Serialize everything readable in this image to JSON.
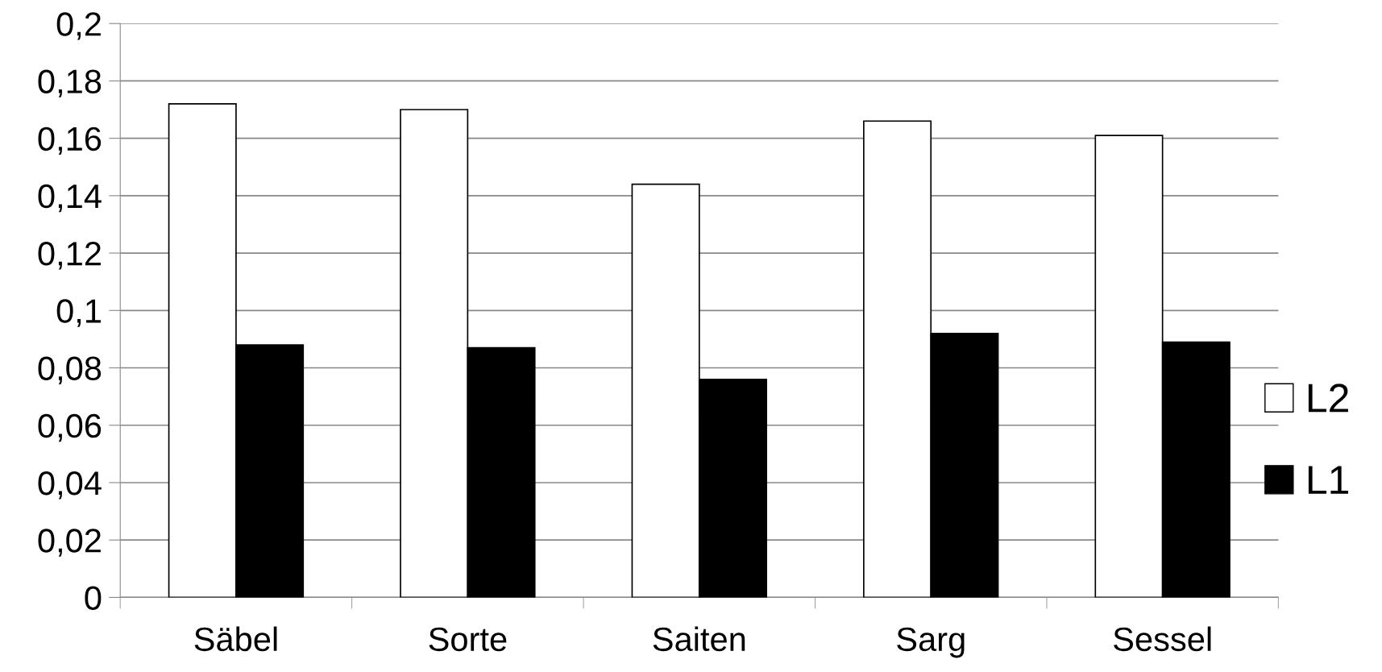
{
  "chart_data": {
    "type": "bar",
    "categories": [
      "Säbel",
      "Sorte",
      "Saiten",
      "Sarg",
      "Sessel"
    ],
    "series": [
      {
        "name": "L2",
        "color": "#ffffff",
        "values": [
          0.172,
          0.17,
          0.144,
          0.166,
          0.161
        ]
      },
      {
        "name": "L1",
        "color": "#000000",
        "values": [
          0.088,
          0.087,
          0.076,
          0.092,
          0.089
        ]
      }
    ],
    "ylim": [
      0,
      0.2
    ],
    "yticks": [
      {
        "value": 0,
        "label": "0"
      },
      {
        "value": 0.02,
        "label": "0,02"
      },
      {
        "value": 0.04,
        "label": "0,04"
      },
      {
        "value": 0.06,
        "label": "0,06"
      },
      {
        "value": 0.08,
        "label": "0,08"
      },
      {
        "value": 0.1,
        "label": "0,1"
      },
      {
        "value": 0.12,
        "label": "0,12"
      },
      {
        "value": 0.14,
        "label": "0,14"
      },
      {
        "value": 0.16,
        "label": "0,16"
      },
      {
        "value": 0.18,
        "label": "0,18"
      },
      {
        "value": 0.2,
        "label": "0,2"
      }
    ],
    "grid": "y",
    "legend": "right"
  }
}
